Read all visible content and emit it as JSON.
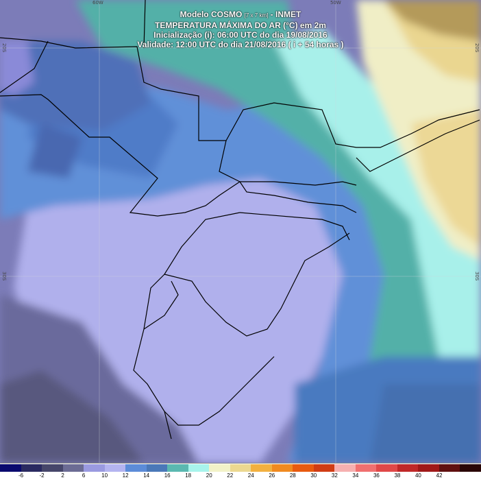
{
  "title": {
    "line1_main": "Modelo COSMO",
    "line1_small": "[7 x 7 km]",
    "line1_tail": " - INMET",
    "line2": "TEMPERATURA MÁXIMA DO AR (°C) em 2m",
    "line3": "Inicialização (i): 06:00 UTC do dia 19/08/2016",
    "line4": "Validade: 12:00 UTC do dia 21/08/2016 ( i + 54 horas )"
  },
  "graticule": {
    "top_lon_left": "60W",
    "top_lon_right": "50W",
    "left_lat_top": "20S",
    "left_lat_bottom": "30S",
    "right_lat_top": "20S",
    "right_lat_bottom": "30S"
  },
  "colorbar": {
    "ticks": [
      "-6",
      "-2",
      "2",
      "6",
      "10",
      "12",
      "14",
      "16",
      "18",
      "20",
      "22",
      "24",
      "26",
      "28",
      "30",
      "32",
      "34",
      "36",
      "38",
      "40",
      "42"
    ],
    "colors": [
      "#0a0a6e",
      "#2a2a60",
      "#46466a",
      "#6c6c94",
      "#9a9ae0",
      "#b4b4f0",
      "#5c8cd8",
      "#4a78b8",
      "#5ab8b0",
      "#a8f4ec",
      "#f2f2c8",
      "#ecd890",
      "#f2b040",
      "#f08a20",
      "#e85a10",
      "#d03c14",
      "#f6b0b0",
      "#f07070",
      "#e04848",
      "#c02828",
      "#a01818",
      "#601010",
      "#2a0606"
    ]
  }
}
